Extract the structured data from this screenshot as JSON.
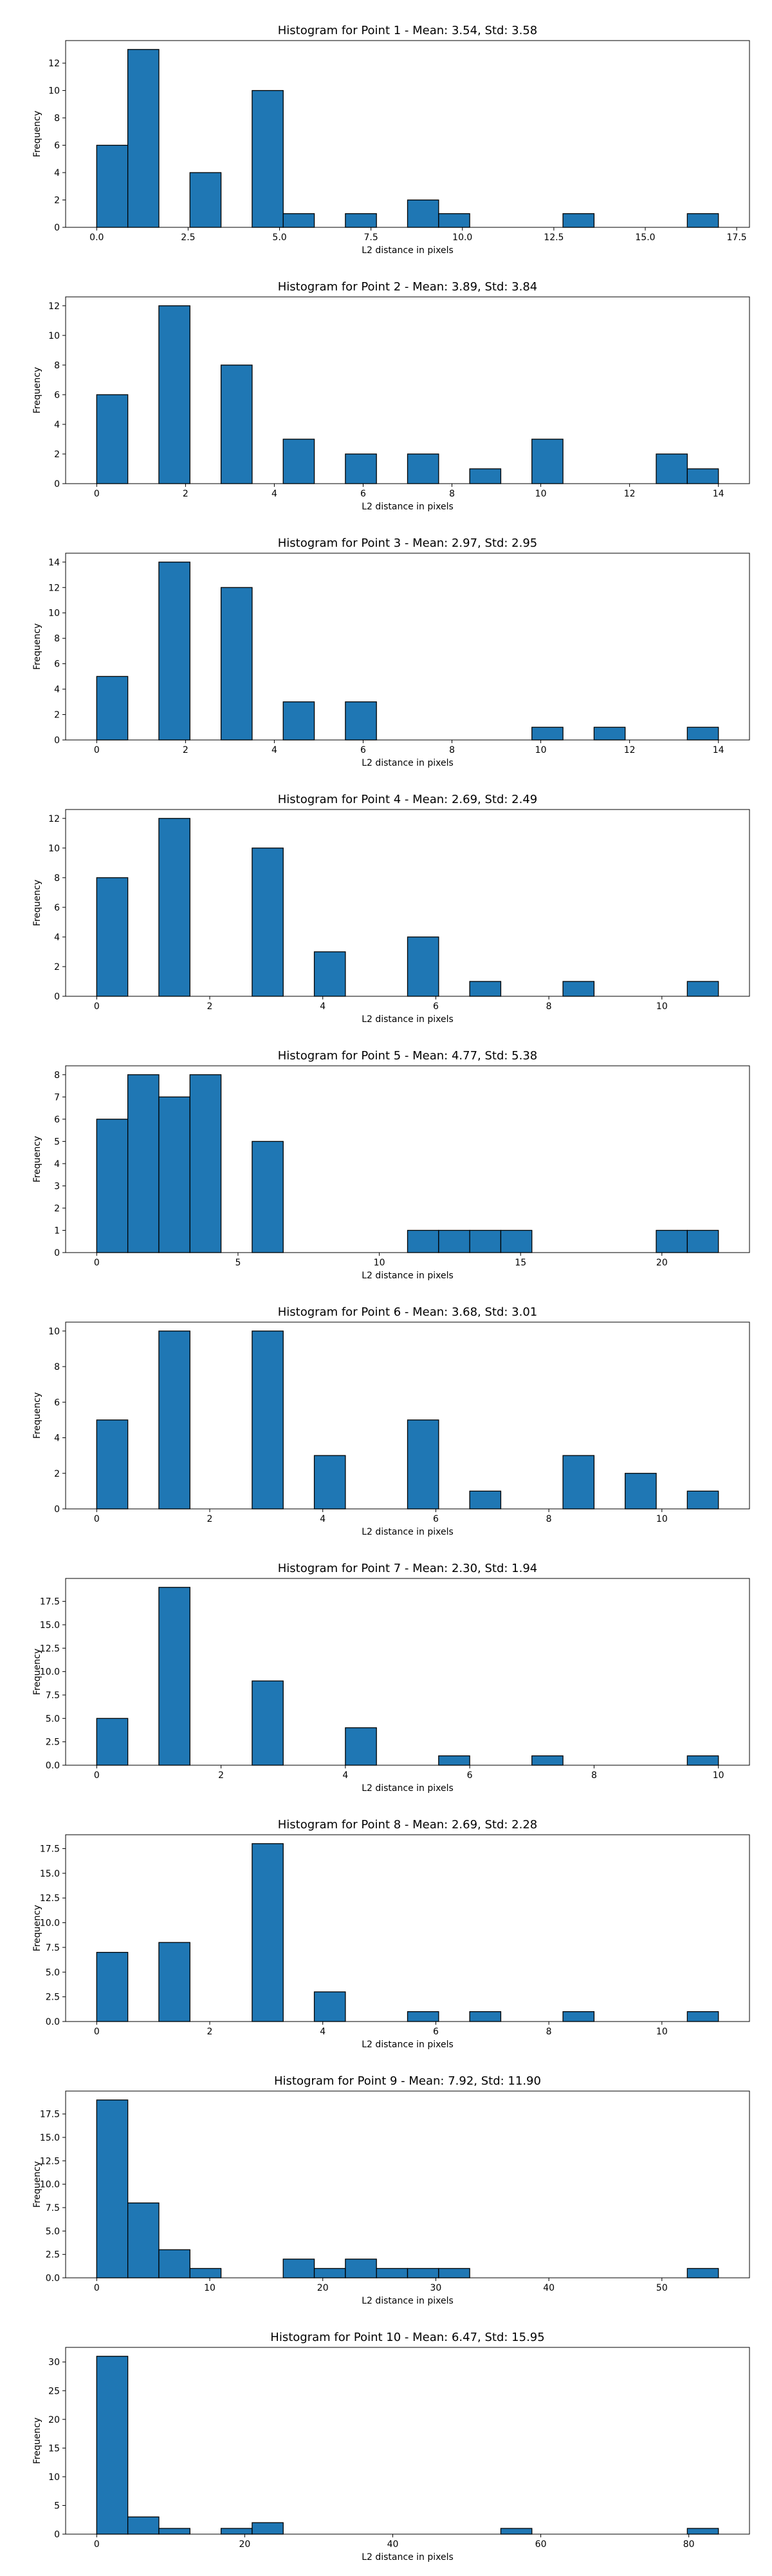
{
  "chart_data": [
    {
      "type": "bar",
      "title": "Histogram for Point 1 - Mean: 3.54, Std: 3.58",
      "xlabel": "L2 distance in pixels",
      "ylabel": "Frequency",
      "xlim": [
        -0.85,
        17.85
      ],
      "ylim": [
        0,
        13.65
      ],
      "xticks": [
        0,
        2.5,
        5,
        7.5,
        10,
        12.5,
        15,
        17.5
      ],
      "xtick_labels": [
        "0.0",
        "2.5",
        "5.0",
        "7.5",
        "10.0",
        "12.5",
        "15.0",
        "17.5"
      ],
      "yticks": [
        0,
        2,
        4,
        6,
        8,
        10,
        12
      ],
      "ytick_labels": [
        "0",
        "2",
        "4",
        "6",
        "8",
        "10",
        "12"
      ],
      "bins": [
        0.0,
        0.85,
        1.7,
        2.55,
        3.4,
        4.25,
        5.1,
        5.95,
        6.8,
        7.65,
        8.5,
        9.35,
        10.2,
        11.05,
        11.9,
        12.75,
        13.6,
        14.45,
        15.3,
        16.15,
        17.0
      ],
      "counts": [
        6,
        13,
        0,
        4,
        0,
        10,
        1,
        0,
        1,
        0,
        2,
        1,
        0,
        0,
        0,
        1,
        0,
        0,
        0,
        1
      ],
      "grid": false
    },
    {
      "type": "bar",
      "title": "Histogram for Point 2 - Mean: 3.89, Std: 3.84",
      "xlabel": "L2 distance in pixels",
      "ylabel": "Frequency",
      "xlim": [
        -0.7,
        14.7
      ],
      "ylim": [
        0,
        12.6
      ],
      "xticks": [
        0,
        2,
        4,
        6,
        8,
        10,
        12,
        14
      ],
      "xtick_labels": [
        "0",
        "2",
        "4",
        "6",
        "8",
        "10",
        "12",
        "14"
      ],
      "yticks": [
        0,
        2,
        4,
        6,
        8,
        10,
        12
      ],
      "ytick_labels": [
        "0",
        "2",
        "4",
        "6",
        "8",
        "10",
        "12"
      ],
      "bins": [
        0.0,
        0.7,
        1.4,
        2.1,
        2.8,
        3.5,
        4.2,
        4.9,
        5.6,
        6.3,
        7.0,
        7.7,
        8.4,
        9.1,
        9.8,
        10.5,
        11.2,
        11.9,
        12.6,
        13.3,
        14.0
      ],
      "counts": [
        6,
        0,
        12,
        0,
        8,
        0,
        3,
        0,
        2,
        0,
        2,
        0,
        1,
        0,
        3,
        0,
        0,
        0,
        2,
        1
      ],
      "grid": false
    },
    {
      "type": "bar",
      "title": "Histogram for Point 3 - Mean: 2.97, Std: 2.95",
      "xlabel": "L2 distance in pixels",
      "ylabel": "Frequency",
      "xlim": [
        -0.7,
        14.7
      ],
      "ylim": [
        0,
        14.7
      ],
      "xticks": [
        0,
        2,
        4,
        6,
        8,
        10,
        12,
        14
      ],
      "xtick_labels": [
        "0",
        "2",
        "4",
        "6",
        "8",
        "10",
        "12",
        "14"
      ],
      "yticks": [
        0,
        2,
        4,
        6,
        8,
        10,
        12,
        14
      ],
      "ytick_labels": [
        "0",
        "2",
        "4",
        "6",
        "8",
        "10",
        "12",
        "14"
      ],
      "bins": [
        0.0,
        0.7,
        1.4,
        2.1,
        2.8,
        3.5,
        4.2,
        4.9,
        5.6,
        6.3,
        7.0,
        7.7,
        8.4,
        9.1,
        9.8,
        10.5,
        11.2,
        11.9,
        12.6,
        13.3,
        14.0
      ],
      "counts": [
        5,
        0,
        14,
        0,
        12,
        0,
        3,
        0,
        3,
        0,
        0,
        0,
        0,
        0,
        1,
        0,
        1,
        0,
        0,
        1
      ],
      "grid": false
    },
    {
      "type": "bar",
      "title": "Histogram for Point 4 - Mean: 2.69, Std: 2.49",
      "xlabel": "L2 distance in pixels",
      "ylabel": "Frequency",
      "xlim": [
        -0.55,
        11.55
      ],
      "ylim": [
        0,
        12.6
      ],
      "xticks": [
        0,
        2,
        4,
        6,
        8,
        10
      ],
      "xtick_labels": [
        "0",
        "2",
        "4",
        "6",
        "8",
        "10"
      ],
      "yticks": [
        0,
        2,
        4,
        6,
        8,
        10,
        12
      ],
      "ytick_labels": [
        "0",
        "2",
        "4",
        "6",
        "8",
        "10",
        "12"
      ],
      "bins": [
        0.0,
        0.55,
        1.1,
        1.65,
        2.2,
        2.75,
        3.3,
        3.85,
        4.4,
        4.95,
        5.5,
        6.05,
        6.6,
        7.15,
        7.7,
        8.25,
        8.8,
        9.35,
        9.9,
        10.45,
        11.0
      ],
      "counts": [
        8,
        0,
        12,
        0,
        0,
        10,
        0,
        3,
        0,
        0,
        4,
        0,
        1,
        0,
        0,
        1,
        0,
        0,
        0,
        1
      ],
      "grid": false
    },
    {
      "type": "bar",
      "title": "Histogram for Point 5 - Mean: 4.77, Std: 5.38",
      "xlabel": "L2 distance in pixels",
      "ylabel": "Frequency",
      "xlim": [
        -1.1,
        23.1
      ],
      "ylim": [
        0,
        8.4
      ],
      "xticks": [
        0,
        5,
        10,
        15,
        20
      ],
      "xtick_labels": [
        "0",
        "5",
        "10",
        "15",
        "20"
      ],
      "yticks": [
        0,
        1,
        2,
        3,
        4,
        5,
        6,
        7,
        8
      ],
      "ytick_labels": [
        "0",
        "1",
        "2",
        "3",
        "4",
        "5",
        "6",
        "7",
        "8"
      ],
      "bins": [
        0.0,
        1.1,
        2.2,
        3.3,
        4.4,
        5.5,
        6.6,
        7.7,
        8.8,
        9.9,
        11.0,
        12.1,
        13.2,
        14.3,
        15.4,
        16.5,
        17.6,
        18.7,
        19.8,
        20.9,
        22.0
      ],
      "counts": [
        6,
        8,
        7,
        8,
        0,
        5,
        0,
        0,
        0,
        0,
        1,
        1,
        1,
        1,
        0,
        0,
        0,
        0,
        1,
        1
      ],
      "grid": false
    },
    {
      "type": "bar",
      "title": "Histogram for Point 6 - Mean: 3.68, Std: 3.01",
      "xlabel": "L2 distance in pixels",
      "ylabel": "Frequency",
      "xlim": [
        -0.55,
        11.55
      ],
      "ylim": [
        0,
        10.5
      ],
      "xticks": [
        0,
        2,
        4,
        6,
        8,
        10
      ],
      "xtick_labels": [
        "0",
        "2",
        "4",
        "6",
        "8",
        "10"
      ],
      "yticks": [
        0,
        2,
        4,
        6,
        8,
        10
      ],
      "ytick_labels": [
        "0",
        "2",
        "4",
        "6",
        "8",
        "10"
      ],
      "bins": [
        0.0,
        0.55,
        1.1,
        1.65,
        2.2,
        2.75,
        3.3,
        3.85,
        4.4,
        4.95,
        5.5,
        6.05,
        6.6,
        7.15,
        7.7,
        8.25,
        8.8,
        9.35,
        9.9,
        10.45,
        11.0
      ],
      "counts": [
        5,
        0,
        10,
        0,
        0,
        10,
        0,
        3,
        0,
        0,
        5,
        0,
        1,
        0,
        0,
        3,
        0,
        2,
        0,
        1
      ],
      "grid": false
    },
    {
      "type": "bar",
      "title": "Histogram for Point 7 - Mean: 2.30, Std: 1.94",
      "xlabel": "L2 distance in pixels",
      "ylabel": "Frequency",
      "xlim": [
        -0.5,
        10.5
      ],
      "ylim": [
        0,
        19.95
      ],
      "xticks": [
        0,
        2,
        4,
        6,
        8,
        10
      ],
      "xtick_labels": [
        "0",
        "2",
        "4",
        "6",
        "8",
        "10"
      ],
      "yticks": [
        0,
        2.5,
        5,
        7.5,
        10,
        12.5,
        15,
        17.5
      ],
      "ytick_labels": [
        "0.0",
        "2.5",
        "5.0",
        "7.5",
        "10.0",
        "12.5",
        "15.0",
        "17.5"
      ],
      "bins": [
        0.0,
        0.5,
        1.0,
        1.5,
        2.0,
        2.5,
        3.0,
        3.5,
        4.0,
        4.5,
        5.0,
        5.5,
        6.0,
        6.5,
        7.0,
        7.5,
        8.0,
        8.5,
        9.0,
        9.5,
        10.0
      ],
      "counts": [
        5,
        0,
        19,
        0,
        0,
        9,
        0,
        0,
        4,
        0,
        0,
        1,
        0,
        0,
        1,
        0,
        0,
        0,
        0,
        1
      ],
      "grid": false
    },
    {
      "type": "bar",
      "title": "Histogram for Point 8 - Mean: 2.69, Std: 2.28",
      "xlabel": "L2 distance in pixels",
      "ylabel": "Frequency",
      "xlim": [
        -0.55,
        11.55
      ],
      "ylim": [
        0,
        18.9
      ],
      "xticks": [
        0,
        2,
        4,
        6,
        8,
        10
      ],
      "xtick_labels": [
        "0",
        "2",
        "4",
        "6",
        "8",
        "10"
      ],
      "yticks": [
        0,
        2.5,
        5,
        7.5,
        10,
        12.5,
        15,
        17.5
      ],
      "ytick_labels": [
        "0.0",
        "2.5",
        "5.0",
        "7.5",
        "10.0",
        "12.5",
        "15.0",
        "17.5"
      ],
      "bins": [
        0.0,
        0.55,
        1.1,
        1.65,
        2.2,
        2.75,
        3.3,
        3.85,
        4.4,
        4.95,
        5.5,
        6.05,
        6.6,
        7.15,
        7.7,
        8.25,
        8.8,
        9.35,
        9.9,
        10.45,
        11.0
      ],
      "counts": [
        7,
        0,
        8,
        0,
        0,
        18,
        0,
        3,
        0,
        0,
        1,
        0,
        1,
        0,
        0,
        1,
        0,
        0,
        0,
        1
      ],
      "grid": false
    },
    {
      "type": "bar",
      "title": "Histogram for Point 9 - Mean: 7.92, Std: 11.90",
      "xlabel": "L2 distance in pixels",
      "ylabel": "Frequency",
      "xlim": [
        -2.75,
        57.75
      ],
      "ylim": [
        0,
        19.95
      ],
      "xticks": [
        0,
        10,
        20,
        30,
        40,
        50
      ],
      "xtick_labels": [
        "0",
        "10",
        "20",
        "30",
        "40",
        "50"
      ],
      "yticks": [
        0,
        2.5,
        5,
        7.5,
        10,
        12.5,
        15,
        17.5
      ],
      "ytick_labels": [
        "0.0",
        "2.5",
        "5.0",
        "7.5",
        "10.0",
        "12.5",
        "15.0",
        "17.5"
      ],
      "bins": [
        0.0,
        2.75,
        5.5,
        8.25,
        11.0,
        13.75,
        16.5,
        19.25,
        22.0,
        24.75,
        27.5,
        30.25,
        33.0,
        35.75,
        38.5,
        41.25,
        44.0,
        46.75,
        49.5,
        52.25,
        55.0
      ],
      "counts": [
        19,
        8,
        3,
        1,
        0,
        0,
        2,
        1,
        2,
        1,
        1,
        1,
        0,
        0,
        0,
        0,
        0,
        0,
        0,
        1
      ],
      "grid": false
    },
    {
      "type": "bar",
      "title": "Histogram for Point 10 - Mean: 6.47, Std: 15.95",
      "xlabel": "L2 distance in pixels",
      "ylabel": "Frequency",
      "xlim": [
        -4.2,
        88.2
      ],
      "ylim": [
        0,
        32.55
      ],
      "xticks": [
        0,
        20,
        40,
        60,
        80
      ],
      "xtick_labels": [
        "0",
        "20",
        "40",
        "60",
        "80"
      ],
      "yticks": [
        0,
        5,
        10,
        15,
        20,
        25,
        30
      ],
      "ytick_labels": [
        "0",
        "5",
        "10",
        "15",
        "20",
        "25",
        "30"
      ],
      "bins": [
        0.0,
        4.2,
        8.4,
        12.6,
        16.8,
        21.0,
        25.2,
        29.4,
        33.6,
        37.8,
        42.0,
        46.2,
        50.4,
        54.6,
        58.8,
        63.0,
        67.2,
        71.4,
        75.6,
        79.8,
        84.0
      ],
      "counts": [
        31,
        3,
        1,
        0,
        1,
        2,
        0,
        0,
        0,
        0,
        0,
        0,
        0,
        1,
        0,
        0,
        0,
        0,
        0,
        1
      ],
      "grid": false
    }
  ],
  "colors": {
    "bar_fill": "#1f77b4",
    "bar_edge": "#000000",
    "axis": "#000000",
    "text": "#000000"
  }
}
